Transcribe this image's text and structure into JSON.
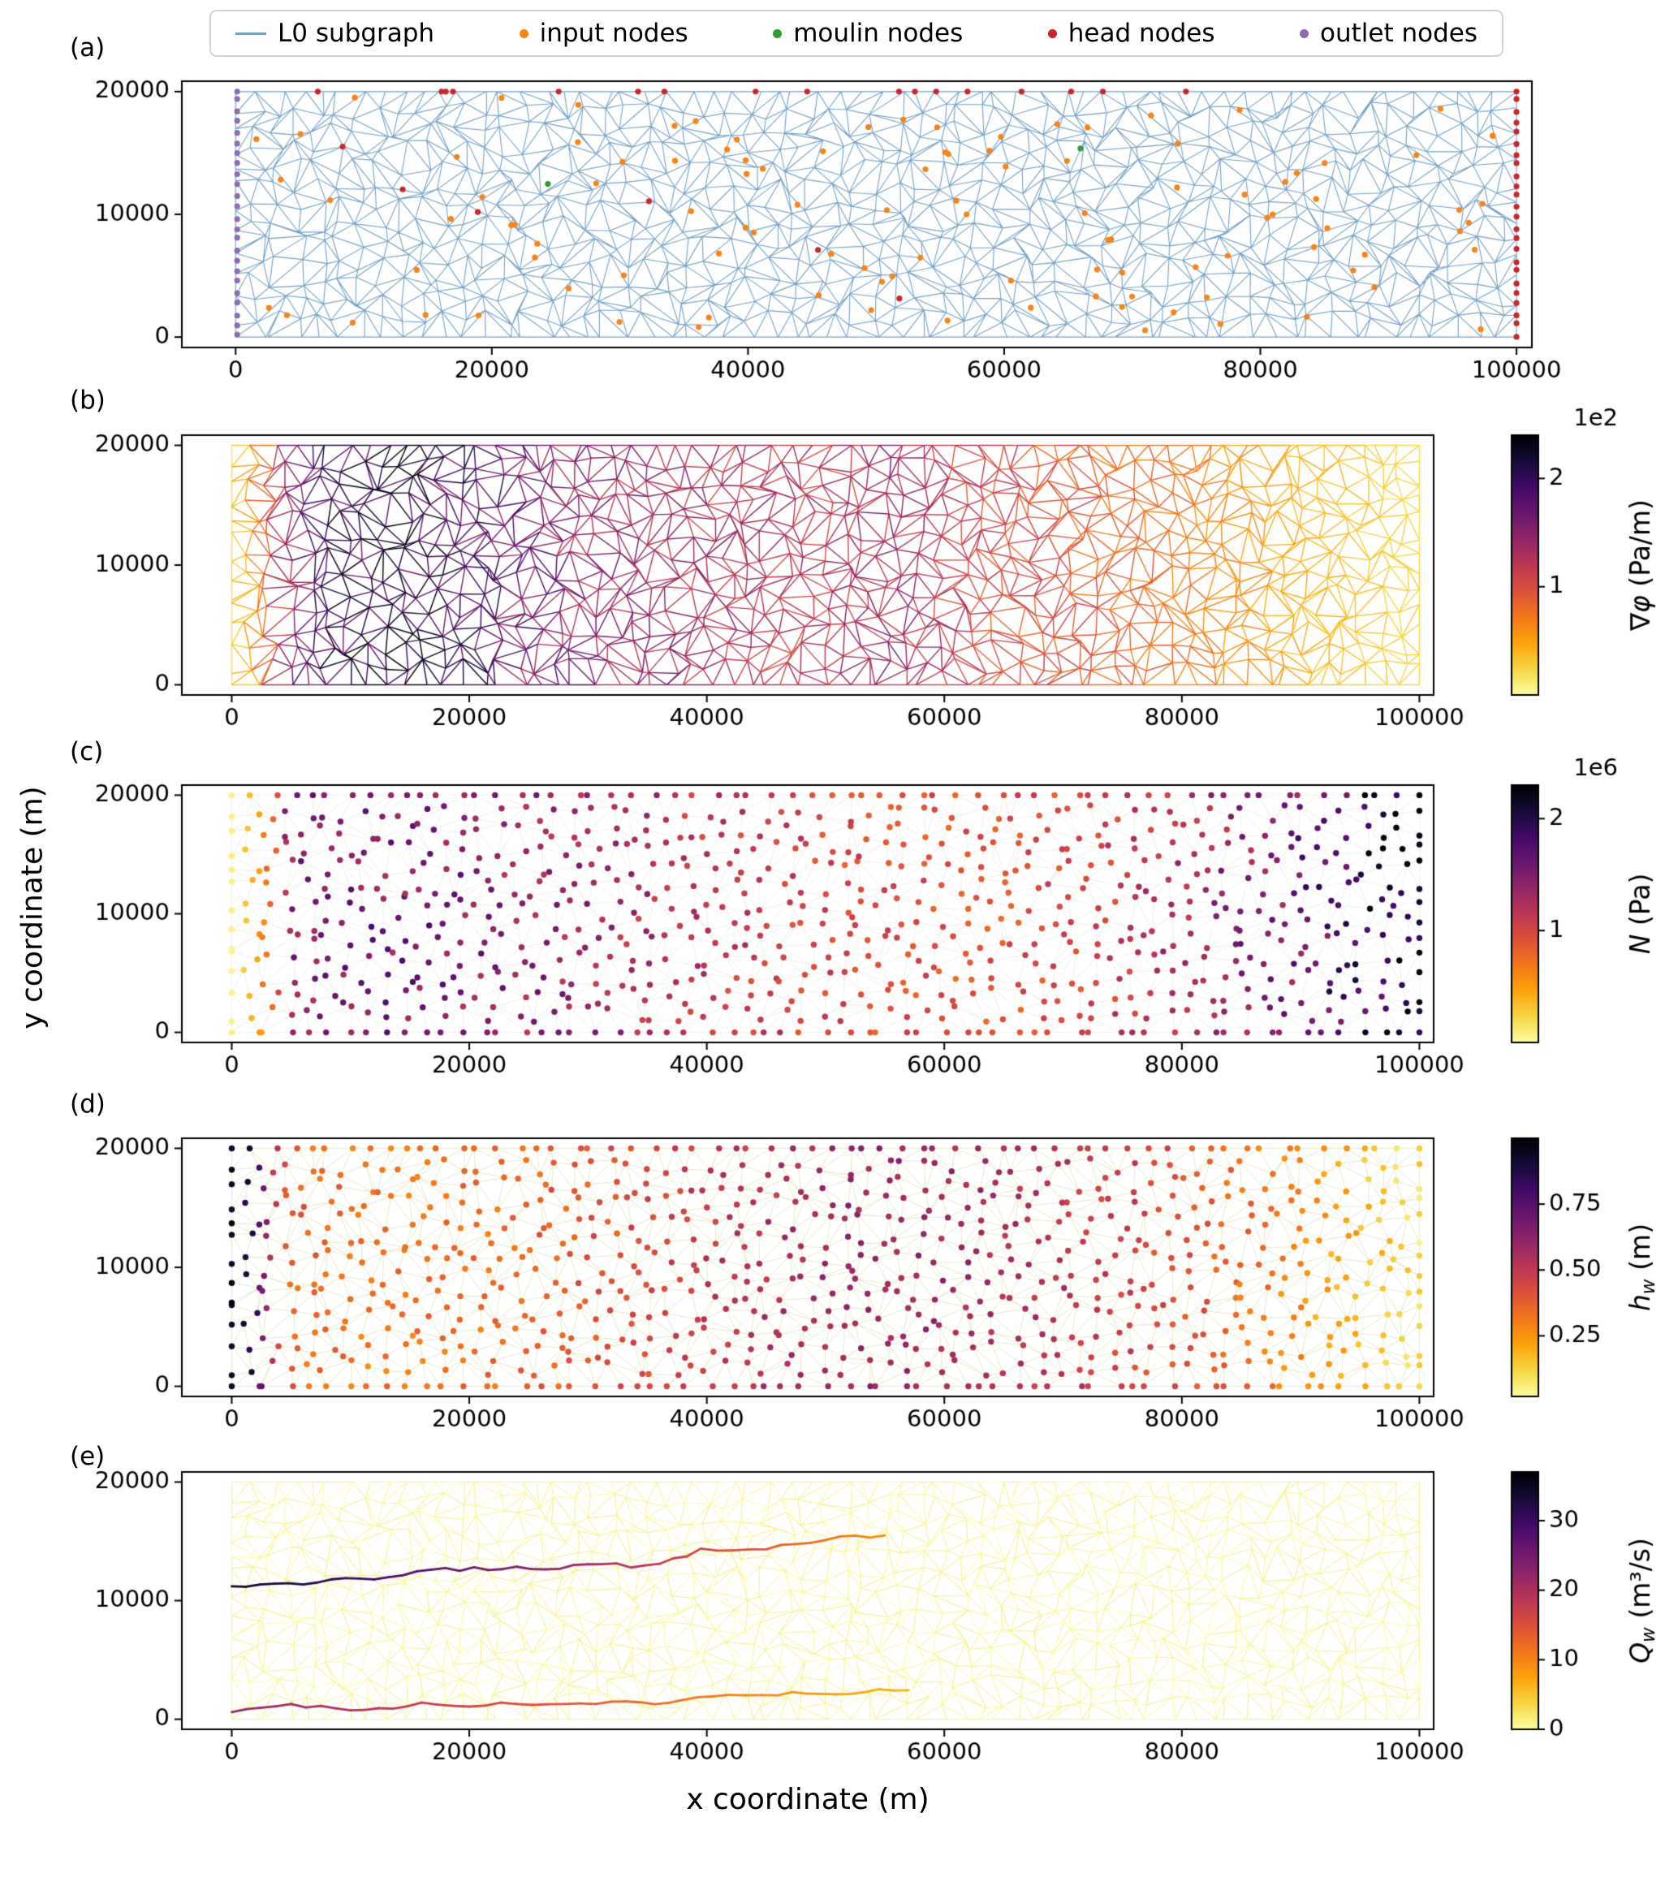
{
  "figure": {
    "panel_labels": [
      "(a)",
      "(b)",
      "(c)",
      "(d)",
      "(e)"
    ],
    "x_axis": {
      "label": "x coordinate (m)",
      "range": [
        0,
        100000
      ],
      "ticks": [
        0,
        20000,
        40000,
        60000,
        80000,
        100000
      ],
      "tick_labels": [
        "0",
        "20000",
        "40000",
        "60000",
        "80000",
        "100000"
      ]
    },
    "y_axis": {
      "label": "y coordinate (m)",
      "range": [
        0,
        20000
      ],
      "ticks": [
        0,
        10000,
        20000
      ],
      "tick_labels": [
        "0",
        "10000",
        "20000"
      ]
    },
    "legend": [
      {
        "label": "L0 subgraph",
        "type": "line",
        "color": "#76a2c8"
      },
      {
        "label": "input nodes",
        "type": "dot",
        "color": "#f98414"
      },
      {
        "label": "moulin nodes",
        "type": "dot",
        "color": "#2ca02c"
      },
      {
        "label": "head nodes",
        "type": "dot",
        "color": "#cc2529"
      },
      {
        "label": "outlet nodes",
        "type": "dot",
        "color": "#8d6bb1"
      }
    ]
  },
  "colormap": {
    "name": "inferno reversed (high value = dark)",
    "stops": [
      "#000004",
      "#160b39",
      "#420a68",
      "#6a176e",
      "#932667",
      "#bc3754",
      "#dd513a",
      "#f37819",
      "#fca50a",
      "#f6d746",
      "#fcffa4"
    ]
  },
  "chart_data": [
    {
      "panel": "(a)",
      "type": "mesh-graph",
      "x_range": [
        0,
        100000
      ],
      "y_range": [
        0,
        20000
      ],
      "edge_color": "#76a2c8",
      "nodes": {
        "input": {
          "color": "#f98414",
          "location": "scattered interior",
          "count": 108
        },
        "moulin": {
          "color": "#2ca02c",
          "location": "interior",
          "count": 2
        },
        "head": {
          "color": "#cc2529",
          "location": "top edge, right edge, few interior",
          "count_top": 17,
          "count_right": 24,
          "count_interior": 6
        },
        "outlet": {
          "color": "#8d6bb1",
          "location": "left edge x=0",
          "count": 24
        }
      }
    },
    {
      "panel": "(b)",
      "type": "mesh-edges-colored",
      "colorbar": {
        "label_sym": "∇φ",
        "label_sub": "",
        "label_unit": "(Pa/m)",
        "scale": "1e2",
        "ticks": [
          100,
          200
        ],
        "tick_labels": [
          "1",
          "2"
        ],
        "vmin": 0,
        "vmax": 240
      },
      "profile_x_value": [
        [
          0,
          20
        ],
        [
          2000,
          60
        ],
        [
          5000,
          150
        ],
        [
          9000,
          205
        ],
        [
          15000,
          215
        ],
        [
          22000,
          175
        ],
        [
          30000,
          145
        ],
        [
          40000,
          130
        ],
        [
          50000,
          120
        ],
        [
          56000,
          140
        ],
        [
          62000,
          108
        ],
        [
          70000,
          95
        ],
        [
          80000,
          72
        ],
        [
          90000,
          42
        ],
        [
          100000,
          22
        ]
      ]
    },
    {
      "panel": "(c)",
      "type": "scatter-colored",
      "colorbar": {
        "label_sym": "N",
        "label_sub": "",
        "label_unit": "(Pa)",
        "scale": "1e6",
        "ticks": [
          1000000,
          2000000
        ],
        "tick_labels": [
          "1",
          "2"
        ],
        "vmin": 0,
        "vmax": 2300000
      },
      "profile_x_value": [
        [
          0,
          80000
        ],
        [
          1200,
          300000
        ],
        [
          2600,
          620000
        ],
        [
          5000,
          1450000
        ],
        [
          12000,
          1560000
        ],
        [
          22000,
          1450000
        ],
        [
          32000,
          1300000
        ],
        [
          42000,
          1120000
        ],
        [
          52000,
          980000
        ],
        [
          62000,
          900000
        ],
        [
          72000,
          1000000
        ],
        [
          82000,
          1300000
        ],
        [
          90000,
          1600000
        ],
        [
          95000,
          1900000
        ],
        [
          100000,
          2250000
        ]
      ]
    },
    {
      "panel": "(d)",
      "type": "scatter-colored",
      "colorbar": {
        "label_sym": "h",
        "label_sub": "w",
        "label_unit": "(m)",
        "scale": "",
        "ticks": [
          0.25,
          0.5,
          0.75
        ],
        "tick_labels": [
          "0.25",
          "0.50",
          "0.75"
        ],
        "vmin": 0.02,
        "vmax": 1.0
      },
      "profile_x_value": [
        [
          0,
          0.95
        ],
        [
          1800,
          0.88
        ],
        [
          3200,
          0.55
        ],
        [
          5000,
          0.37
        ],
        [
          12000,
          0.32
        ],
        [
          22000,
          0.34
        ],
        [
          32000,
          0.42
        ],
        [
          42000,
          0.52
        ],
        [
          52000,
          0.6
        ],
        [
          62000,
          0.58
        ],
        [
          72000,
          0.5
        ],
        [
          80000,
          0.42
        ],
        [
          88000,
          0.3
        ],
        [
          94000,
          0.2
        ],
        [
          100000,
          0.1
        ]
      ]
    },
    {
      "panel": "(e)",
      "type": "mesh-channels",
      "colorbar": {
        "label_sym": "Q",
        "label_sub": "w",
        "label_unit": "(m³/s)",
        "scale": "",
        "ticks": [
          0,
          10,
          20,
          30
        ],
        "tick_labels": [
          "0",
          "10",
          "20",
          "30"
        ],
        "vmin": 0,
        "vmax": 37
      },
      "background_value_range": [
        0,
        1.6
      ],
      "channels": [
        {
          "q_start": 35,
          "q_end": 9,
          "path": [
            [
              0,
              11200
            ],
            [
              6000,
              11400
            ],
            [
              12000,
              12000
            ],
            [
              18000,
              12600
            ],
            [
              24000,
              12800
            ],
            [
              30000,
              12900
            ],
            [
              36000,
              13000
            ],
            [
              39500,
              14200
            ],
            [
              45000,
              14500
            ],
            [
              50000,
              15200
            ],
            [
              55000,
              15500
            ]
          ]
        },
        {
          "q_start": 22,
          "q_end": 6,
          "path": [
            [
              0,
              600
            ],
            [
              5000,
              1100
            ],
            [
              10000,
              800
            ],
            [
              16000,
              1200
            ],
            [
              24000,
              1300
            ],
            [
              32000,
              1350
            ],
            [
              38000,
              1500
            ],
            [
              40500,
              2100
            ],
            [
              46000,
              2200
            ],
            [
              52000,
              2300
            ],
            [
              57000,
              2450
            ]
          ]
        }
      ]
    }
  ]
}
